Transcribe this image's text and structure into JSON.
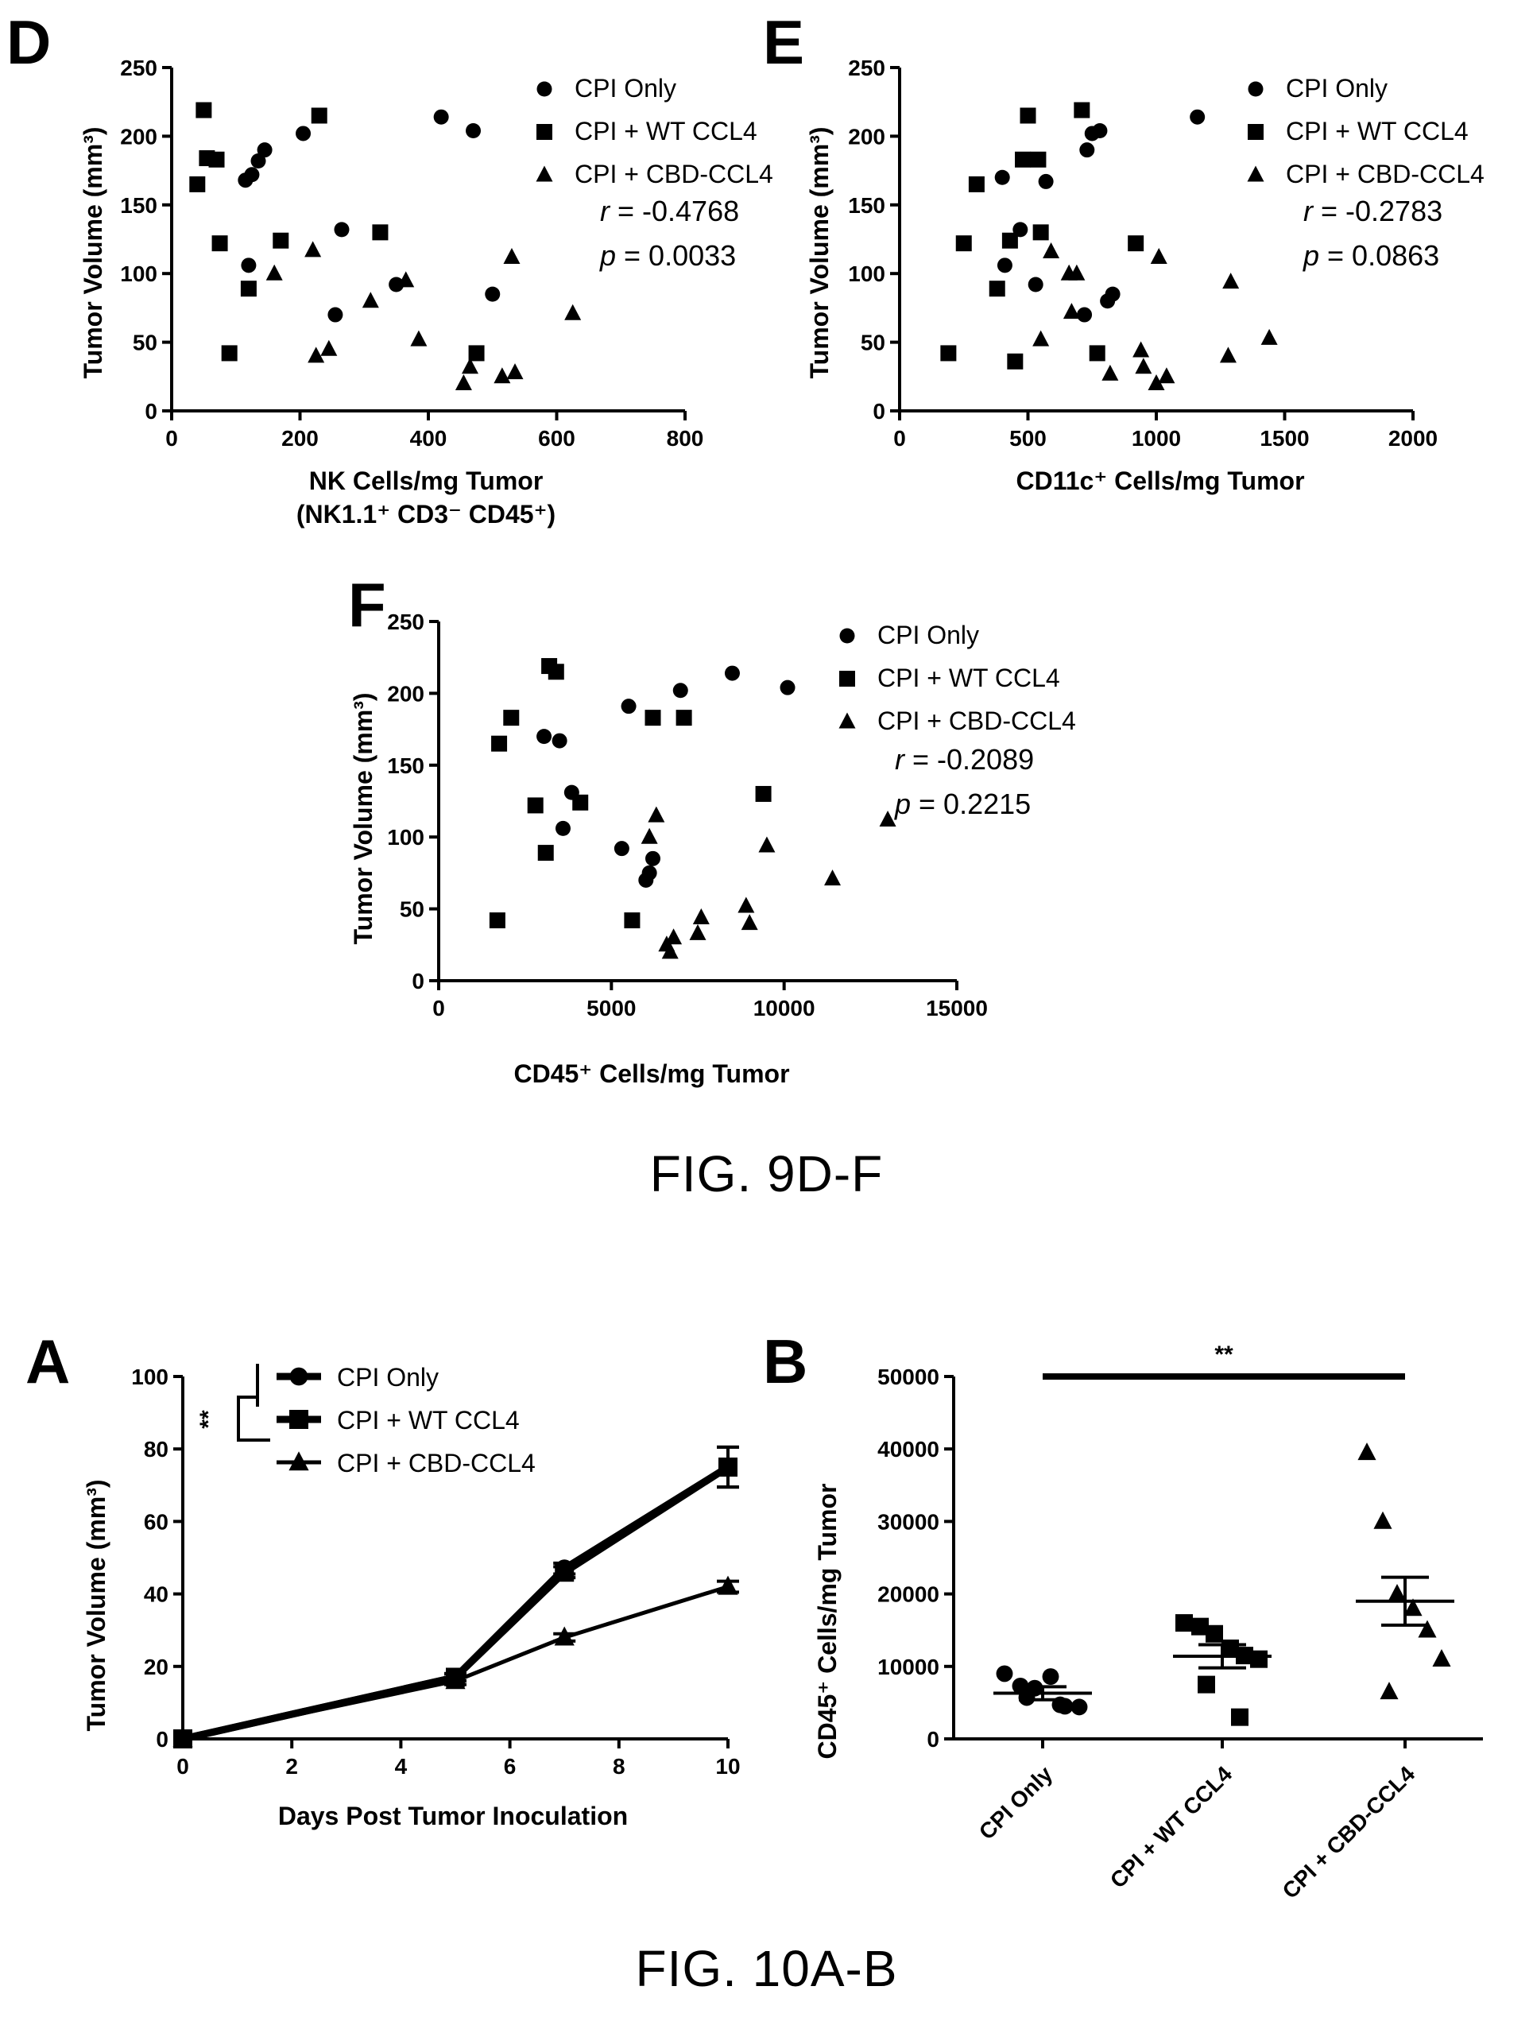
{
  "captions": {
    "fig9": "FIG. 9D-F",
    "fig10": "FIG. 10A-B"
  },
  "chart_data": [
    {
      "id": "D",
      "panel_letter": "D",
      "type": "scatter",
      "xlabel": "NK Cells/mg Tumor",
      "xlabel2": "(NK1.1⁺ CD3⁻ CD45⁺)",
      "ylabel": "Tumor Volume (mm³)",
      "xlim": [
        0,
        800
      ],
      "ylim": [
        0,
        250
      ],
      "xticks": [
        0,
        200,
        400,
        600,
        800
      ],
      "yticks": [
        0,
        50,
        100,
        150,
        200,
        250
      ],
      "stats": {
        "r_label": "r",
        "r_value": " = -0.4768",
        "p_label": "p",
        "p_value": " = 0.0033"
      },
      "legend_position": "top-right",
      "series": [
        {
          "name": "CPI Only",
          "marker": "circle",
          "points": [
            [
              115,
              168
            ],
            [
              125,
              172
            ],
            [
              135,
              182
            ],
            [
              145,
              190
            ],
            [
              205,
              202
            ],
            [
              265,
              132
            ],
            [
              255,
              70
            ],
            [
              120,
              106
            ],
            [
              350,
              92
            ],
            [
              420,
              214
            ],
            [
              470,
              204
            ],
            [
              500,
              85
            ]
          ]
        },
        {
          "name": "CPI + WT CCL4",
          "marker": "square",
          "points": [
            [
              40,
              165
            ],
            [
              50,
              219
            ],
            [
              55,
              184
            ],
            [
              70,
              183
            ],
            [
              75,
              122
            ],
            [
              90,
              42
            ],
            [
              120,
              89
            ],
            [
              170,
              124
            ],
            [
              230,
              215
            ],
            [
              325,
              130
            ],
            [
              475,
              42
            ]
          ]
        },
        {
          "name": "CPI + CBD-CCL4",
          "marker": "triangle",
          "points": [
            [
              160,
              100
            ],
            [
              220,
              117
            ],
            [
              225,
              40
            ],
            [
              245,
              45
            ],
            [
              310,
              80
            ],
            [
              365,
              95
            ],
            [
              385,
              52
            ],
            [
              455,
              20
            ],
            [
              465,
              32
            ],
            [
              515,
              25
            ],
            [
              530,
              112
            ],
            [
              535,
              28
            ],
            [
              625,
              71
            ]
          ]
        }
      ]
    },
    {
      "id": "E",
      "panel_letter": "E",
      "type": "scatter",
      "xlabel": "CD11c⁺ Cells/mg Tumor",
      "ylabel": "Tumor Volume (mm³)",
      "xlim": [
        0,
        2000
      ],
      "ylim": [
        0,
        250
      ],
      "xticks": [
        0,
        500,
        1000,
        1500,
        2000
      ],
      "yticks": [
        0,
        50,
        100,
        150,
        200,
        250
      ],
      "stats": {
        "r_label": "r",
        "r_value": " = -0.2783",
        "p_label": "p",
        "p_value": " = 0.0863"
      },
      "legend_position": "top-right",
      "series": [
        {
          "name": "CPI Only",
          "marker": "circle",
          "points": [
            [
              400,
              170
            ],
            [
              410,
              106
            ],
            [
              470,
              132
            ],
            [
              530,
              92
            ],
            [
              570,
              167
            ],
            [
              720,
              70
            ],
            [
              730,
              190
            ],
            [
              750,
              202
            ],
            [
              780,
              204
            ],
            [
              810,
              80
            ],
            [
              830,
              85
            ],
            [
              1160,
              214
            ]
          ]
        },
        {
          "name": "CPI + WT CCL4",
          "marker": "square",
          "points": [
            [
              190,
              42
            ],
            [
              250,
              122
            ],
            [
              300,
              165
            ],
            [
              380,
              89
            ],
            [
              430,
              124
            ],
            [
              450,
              36
            ],
            [
              480,
              183
            ],
            [
              500,
              215
            ],
            [
              540,
              183
            ],
            [
              550,
              130
            ],
            [
              710,
              219
            ],
            [
              770,
              42
            ],
            [
              920,
              122
            ]
          ]
        },
        {
          "name": "CPI + CBD-CCL4",
          "marker": "triangle",
          "points": [
            [
              550,
              52
            ],
            [
              590,
              116
            ],
            [
              660,
              100
            ],
            [
              670,
              72
            ],
            [
              690,
              100
            ],
            [
              820,
              27
            ],
            [
              940,
              44
            ],
            [
              950,
              32
            ],
            [
              1000,
              20
            ],
            [
              1010,
              112
            ],
            [
              1040,
              25
            ],
            [
              1280,
              40
            ],
            [
              1290,
              94
            ],
            [
              1440,
              53
            ]
          ]
        }
      ]
    },
    {
      "id": "F",
      "panel_letter": "F",
      "type": "scatter",
      "xlabel": "CD45⁺ Cells/mg Tumor",
      "ylabel": "Tumor Volume (mm³)",
      "xlim": [
        0,
        15000
      ],
      "ylim": [
        0,
        250
      ],
      "xticks": [
        0,
        5000,
        10000,
        15000
      ],
      "yticks": [
        0,
        50,
        100,
        150,
        200,
        250
      ],
      "stats": {
        "r_label": "r",
        "r_value": " = -0.2089",
        "p_label": "p",
        "p_value": " = 0.2215"
      },
      "legend_position": "top-right",
      "series": [
        {
          "name": "CPI Only",
          "marker": "circle",
          "points": [
            [
              3050,
              170
            ],
            [
              3500,
              167
            ],
            [
              3600,
              106
            ],
            [
              3850,
              131
            ],
            [
              5300,
              92
            ],
            [
              5500,
              191
            ],
            [
              6000,
              70
            ],
            [
              6100,
              75
            ],
            [
              6200,
              85
            ],
            [
              7000,
              202
            ],
            [
              8500,
              214
            ],
            [
              10100,
              204
            ]
          ]
        },
        {
          "name": "CPI + WT CCL4",
          "marker": "square",
          "points": [
            [
              1700,
              42
            ],
            [
              1750,
              165
            ],
            [
              2100,
              183
            ],
            [
              2800,
              122
            ],
            [
              3100,
              89
            ],
            [
              3200,
              219
            ],
            [
              3400,
              215
            ],
            [
              4100,
              124
            ],
            [
              5600,
              42
            ],
            [
              6200,
              183
            ],
            [
              7100,
              183
            ],
            [
              9400,
              130
            ]
          ]
        },
        {
          "name": "CPI + CBD-CCL4",
          "marker": "triangle",
          "points": [
            [
              6100,
              100
            ],
            [
              6300,
              115
            ],
            [
              6600,
              25
            ],
            [
              6700,
              20
            ],
            [
              6800,
              30
            ],
            [
              7500,
              33
            ],
            [
              7600,
              44
            ],
            [
              8900,
              52
            ],
            [
              9000,
              40
            ],
            [
              9500,
              94
            ],
            [
              11400,
              71
            ],
            [
              13000,
              112
            ]
          ]
        }
      ]
    },
    {
      "id": "A",
      "panel_letter": "A",
      "type": "line",
      "xlabel": "Days Post Tumor Inoculation",
      "ylabel": "Tumor Volume (mm³)",
      "xlim": [
        0,
        10
      ],
      "ylim": [
        0,
        100
      ],
      "xticks": [
        0,
        2,
        4,
        6,
        8,
        10
      ],
      "yticks": [
        0,
        20,
        40,
        60,
        80,
        100
      ],
      "significance": "**",
      "legend_position": "top-left",
      "x": [
        0,
        5,
        7,
        10
      ],
      "series": [
        {
          "name": "CPI Only",
          "marker": "circle",
          "values": [
            0,
            17,
            47,
            75
          ],
          "error": [
            0,
            1,
            1.5,
            5.5
          ]
        },
        {
          "name": "CPI + WT CCL4",
          "marker": "square",
          "values": [
            0,
            17,
            46,
            75
          ],
          "error": [
            0,
            1,
            1.5,
            5.5
          ]
        },
        {
          "name": "CPI + CBD-CCL4",
          "marker": "triangle",
          "values": [
            0,
            16,
            28,
            42
          ],
          "error": [
            0,
            1,
            1,
            1.5
          ]
        }
      ]
    },
    {
      "id": "B",
      "panel_letter": "B",
      "type": "scatter",
      "ylabel": "CD45⁺ Cells/mg Tumor",
      "ylim": [
        0,
        50000
      ],
      "yticks": [
        0,
        10000,
        20000,
        30000,
        40000,
        50000
      ],
      "categories": [
        "CPI Only",
        "CPI + WT CCL4",
        "CPI + CBD-CCL4"
      ],
      "significance": "**",
      "series": [
        {
          "name": "CPI Only",
          "marker": "circle",
          "mean": 6300,
          "sem": 900,
          "values": [
            9000,
            7300,
            7000,
            8600,
            4500,
            4400,
            5700,
            4700
          ]
        },
        {
          "name": "CPI + WT CCL4",
          "marker": "square",
          "mean": 11400,
          "sem": 1600,
          "values": [
            16000,
            15500,
            14500,
            12500,
            11500,
            11000,
            7500,
            3000
          ]
        },
        {
          "name": "CPI + CBD-CCL4",
          "marker": "triangle",
          "mean": 19000,
          "sem": 3300,
          "values": [
            39500,
            30000,
            20000,
            18000,
            15000,
            11000,
            6500
          ]
        }
      ]
    }
  ]
}
